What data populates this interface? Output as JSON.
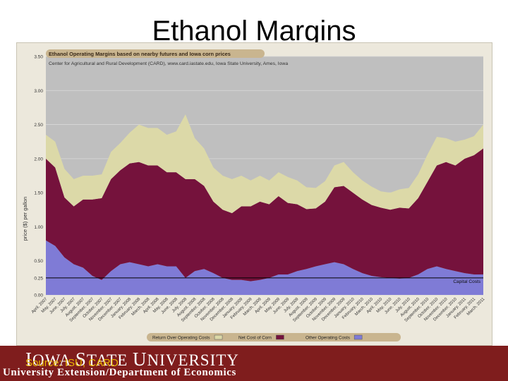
{
  "slide": {
    "title": "Ethanol Margins",
    "university_name_parts": [
      "I",
      "OWA ",
      "S",
      "TATE ",
      "U",
      "NIVERSITY"
    ],
    "source": "Source: ISU, CARD",
    "department": "University Extension/Department of Economics"
  },
  "colors": {
    "footer": "#7f1d1d",
    "plot_background": "#bfbfbf",
    "return_over_operating_costs": "#dcd9a8",
    "net_cost_of_corn": "#75123c",
    "other_operating_costs": "#7f7bd6",
    "frame_background": "#ece8dc",
    "title_bar": "#c9b58f"
  },
  "chart_data": {
    "type": "area",
    "stacked": true,
    "title": "Ethanol Operating Margins based on nearby futures and Iowa corn prices",
    "subtitle": "Center for Agricultural and Rural Development (CARD), www.card.iastate.edu, Iowa State University, Ames, Iowa",
    "ylabel": "price ($) per gallon",
    "xlabel": "",
    "ylim": [
      0,
      3.5
    ],
    "yticks": [
      "0.00",
      "0.25",
      "0.50",
      "1.00",
      "1.50",
      "2.00",
      "2.50",
      "3.00",
      "3.50"
    ],
    "ytick_values": [
      0,
      0.25,
      0.5,
      1.0,
      1.5,
      2.0,
      2.5,
      3.0,
      3.5
    ],
    "grid": true,
    "legend_position": "bottom",
    "reference_line": {
      "label": "Capital Costs",
      "value": 0.25
    },
    "x": [
      "April, 2007",
      "May, 2007",
      "June, 2007",
      "July, 2007",
      "August, 2007",
      "September, 2007",
      "October, 2007",
      "November, 2007",
      "December, 2007",
      "January, 2008",
      "February, 2008",
      "March, 2008",
      "April, 2008",
      "May, 2008",
      "June, 2008",
      "July, 2008",
      "August, 2008",
      "September, 2008",
      "October, 2008",
      "November, 2008",
      "December, 2008",
      "January, 2009",
      "February, 2009",
      "March, 2009",
      "April, 2009",
      "May, 2009",
      "June, 2009",
      "July, 2009",
      "August, 2009",
      "September, 2009",
      "October, 2009",
      "November, 2009",
      "December, 2009",
      "January, 2010",
      "February, 2010",
      "March, 2010",
      "April, 2010",
      "May, 2010",
      "June, 2010",
      "July, 2010",
      "August, 2010",
      "September, 2010",
      "October, 2010",
      "November, 2010",
      "December, 2010",
      "January, 2011",
      "February, 2011",
      "March, 2011"
    ],
    "series": [
      {
        "name": "Other Operating Costs",
        "values": [
          0.8,
          0.72,
          0.55,
          0.45,
          0.4,
          0.28,
          0.22,
          0.35,
          0.45,
          0.48,
          0.45,
          0.42,
          0.45,
          0.42,
          0.42,
          0.25,
          0.35,
          0.38,
          0.32,
          0.25,
          0.22,
          0.22,
          0.2,
          0.22,
          0.25,
          0.3,
          0.3,
          0.35,
          0.38,
          0.42,
          0.45,
          0.48,
          0.45,
          0.38,
          0.32,
          0.28,
          0.26,
          0.25,
          0.24,
          0.25,
          0.3,
          0.38,
          0.42,
          0.38,
          0.35,
          0.32,
          0.3,
          0.3
        ]
      },
      {
        "name": "Net Cost of Corn",
        "values": [
          1.2,
          1.15,
          0.88,
          0.85,
          1.0,
          1.12,
          1.2,
          1.35,
          1.38,
          1.45,
          1.5,
          1.48,
          1.45,
          1.38,
          1.38,
          1.45,
          1.35,
          1.22,
          1.05,
          1.0,
          0.98,
          1.08,
          1.1,
          1.15,
          1.08,
          1.15,
          1.05,
          0.98,
          0.88,
          0.85,
          0.92,
          1.1,
          1.15,
          1.12,
          1.08,
          1.04,
          1.02,
          1.0,
          1.04,
          1.02,
          1.12,
          1.28,
          1.48,
          1.57,
          1.55,
          1.68,
          1.75,
          1.85
        ]
      },
      {
        "name": "Return Over Operating Costs",
        "values": [
          0.35,
          0.38,
          0.42,
          0.4,
          0.35,
          0.35,
          0.35,
          0.4,
          0.4,
          0.45,
          0.55,
          0.55,
          0.55,
          0.55,
          0.6,
          0.95,
          0.6,
          0.55,
          0.5,
          0.5,
          0.5,
          0.45,
          0.38,
          0.38,
          0.35,
          0.35,
          0.38,
          0.35,
          0.32,
          0.3,
          0.3,
          0.32,
          0.35,
          0.3,
          0.28,
          0.27,
          0.24,
          0.25,
          0.27,
          0.3,
          0.35,
          0.4,
          0.42,
          0.35,
          0.35,
          0.28,
          0.28,
          0.35
        ]
      }
    ],
    "legend": [
      "Return Over Operating Costs",
      "Net Cost of Corn",
      "Other Operating Costs"
    ]
  }
}
